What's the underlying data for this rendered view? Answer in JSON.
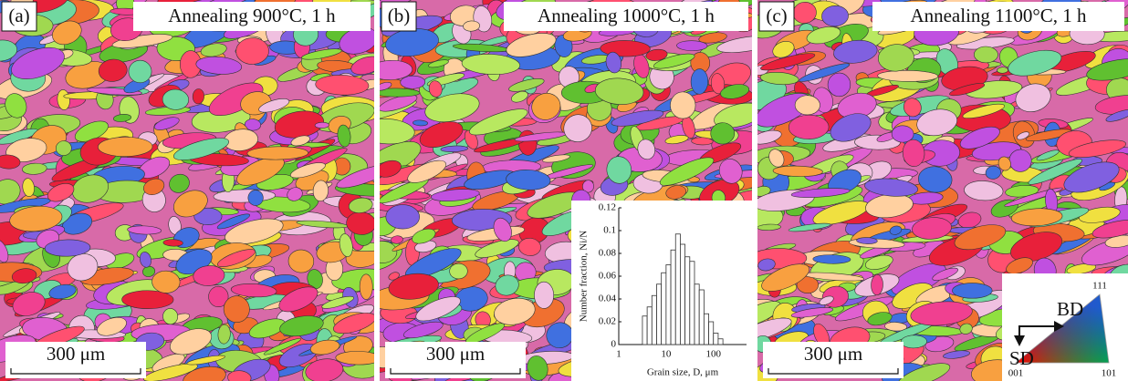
{
  "panels": [
    {
      "label": "(a)",
      "title": "Annealing 900°C, 1  h",
      "scale_bar": "300 μm"
    },
    {
      "label": "(b)",
      "title": "Annealing 1000°C, 1 h",
      "scale_bar": "300 μm"
    },
    {
      "label": "(c)",
      "title": "Annealing 1100°C, 1 h",
      "scale_bar": "300 μm"
    }
  ],
  "orientation_key": {
    "bd": "BD",
    "sd": "SD",
    "corner_111": "111",
    "corner_001": "001",
    "corner_101": "101"
  },
  "chart_data": {
    "type": "histogram",
    "xlabel": "Grain size, D, μm",
    "ylabel": "Number fraction, Ni/N",
    "bins": [
      3.162,
      3.981,
      5.012,
      6.31,
      7.943,
      10,
      12.59,
      15.85,
      19.95,
      25.12,
      31.62,
      39.81,
      50.12,
      63.1,
      79.43,
      100,
      125.9,
      158.5
    ],
    "values": [
      0.025,
      0.033,
      0.043,
      0.053,
      0.063,
      0.07,
      0.083,
      0.097,
      0.088,
      0.077,
      0.073,
      0.053,
      0.048,
      0.027,
      0.02,
      0.01,
      0.005
    ],
    "color": "#ffffff",
    "edgecolor": "#333333",
    "log_x": true,
    "xlim": [
      1,
      500
    ],
    "xticks": [
      1,
      10,
      100
    ],
    "ylim": [
      0,
      0.12
    ],
    "yticks": [
      0,
      0.02,
      0.04,
      0.06,
      0.08,
      0.1,
      0.12
    ]
  }
}
